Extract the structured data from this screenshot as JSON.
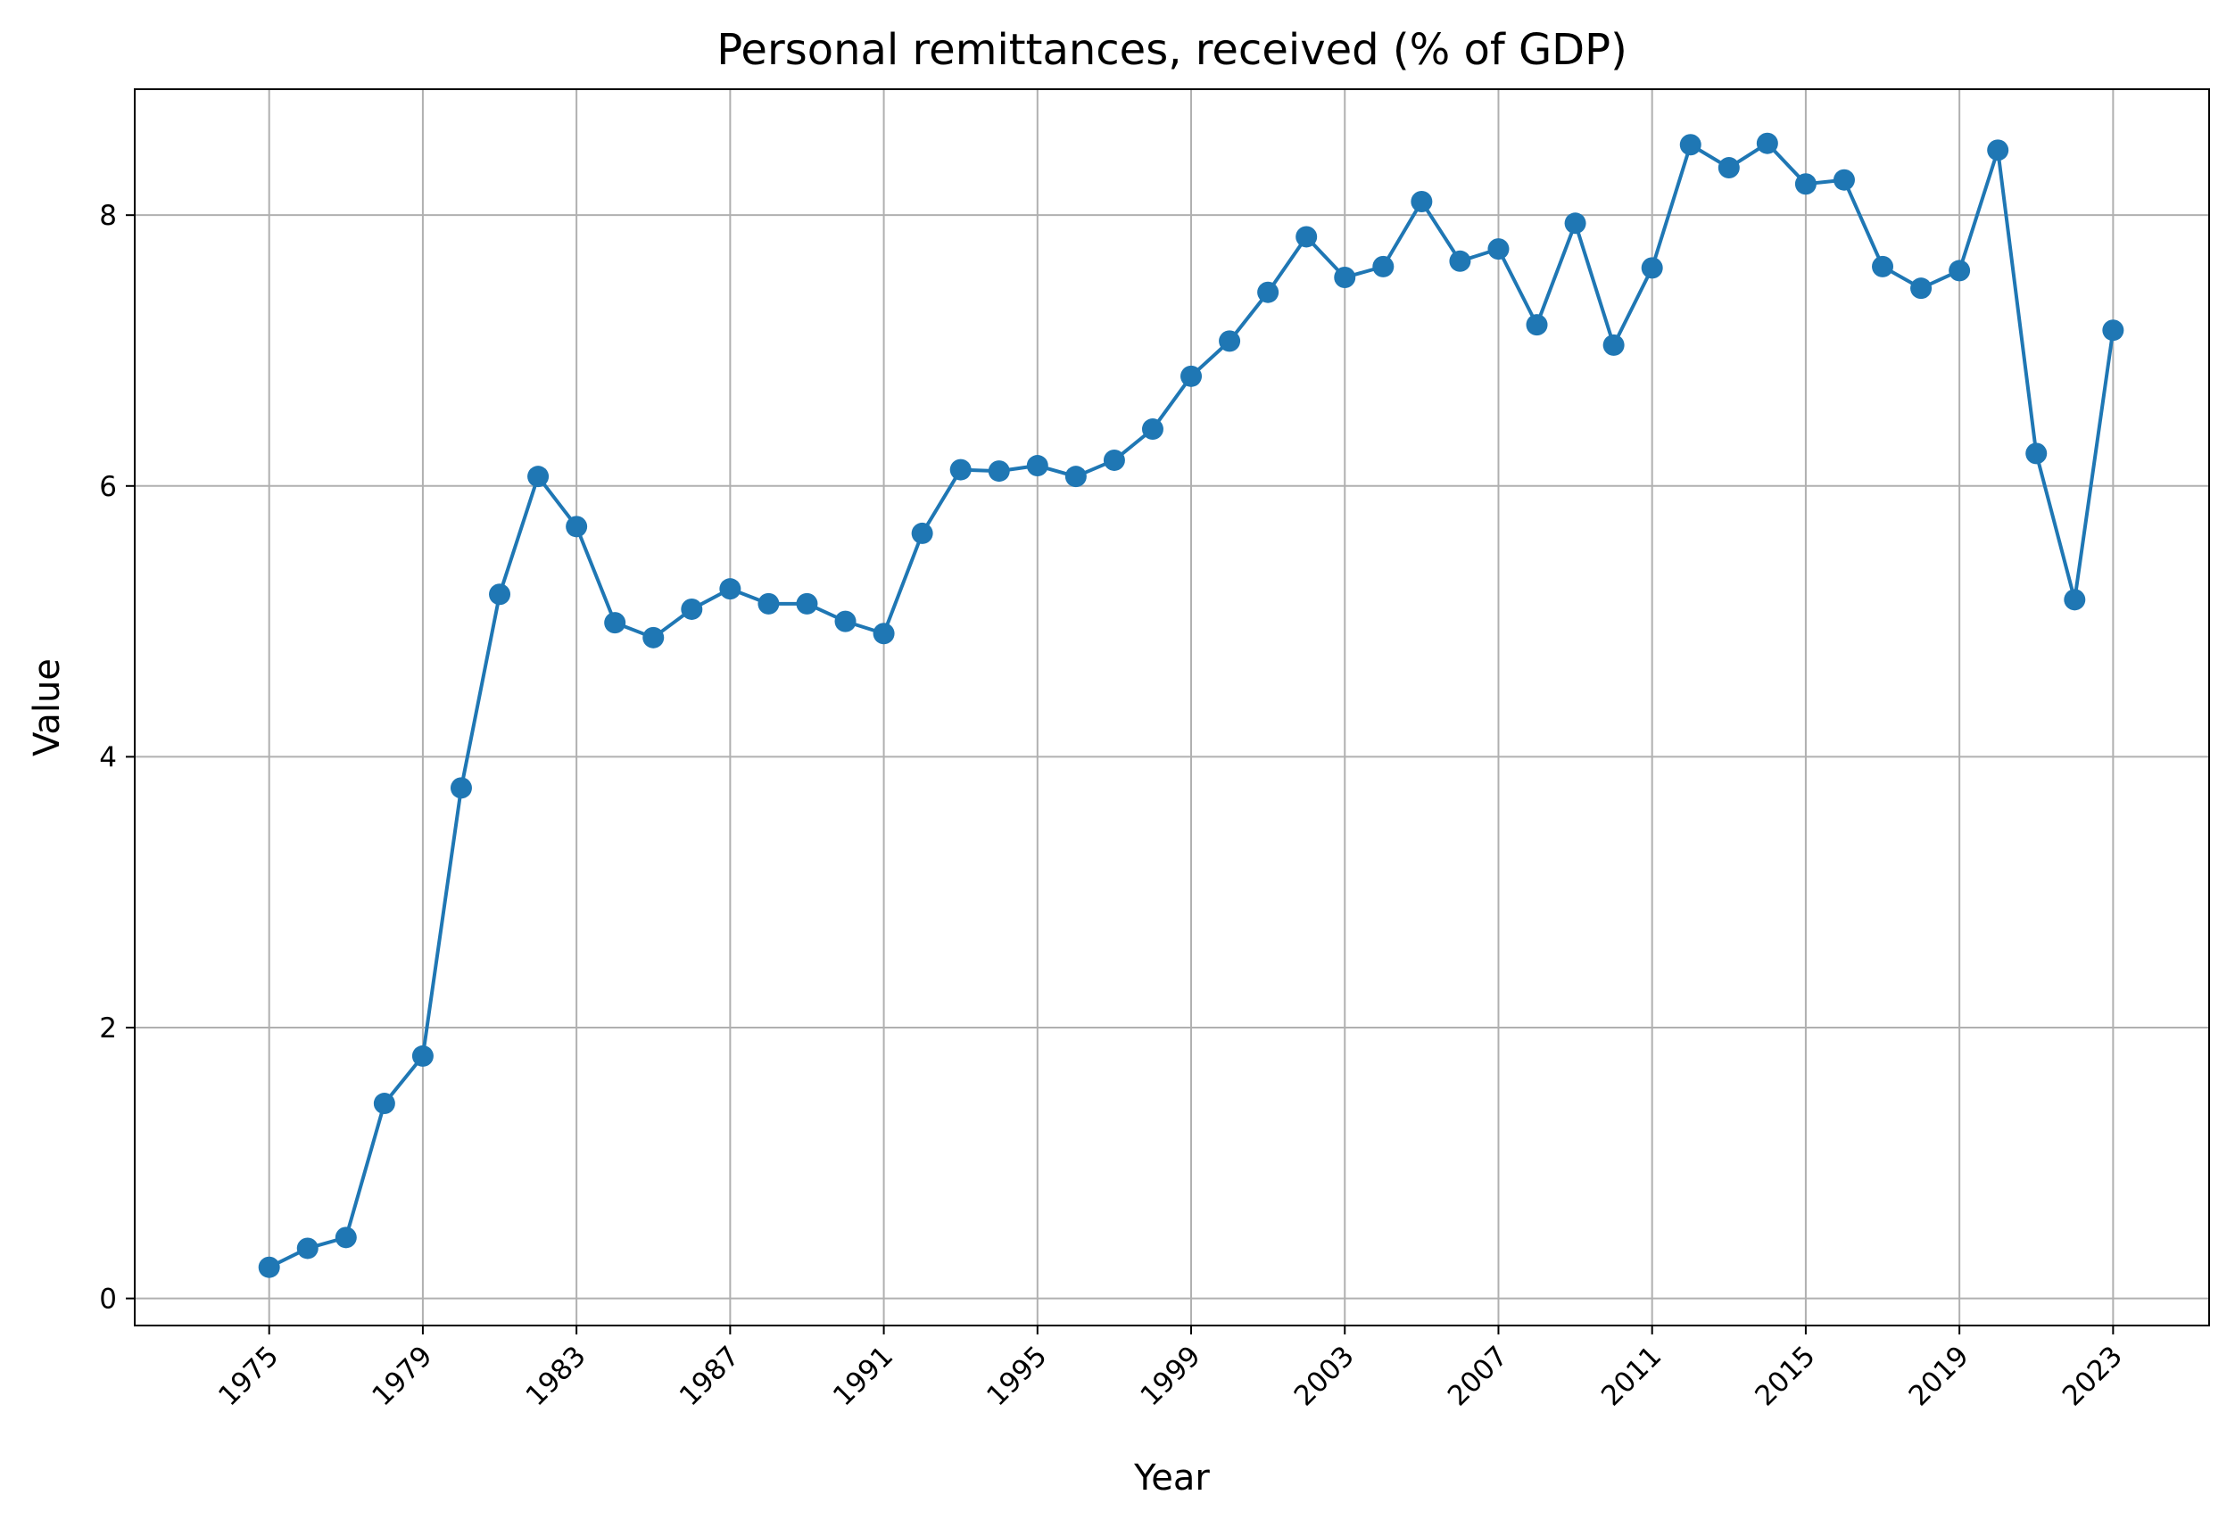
{
  "chart_data": {
    "type": "line",
    "title": "Personal remittances, received (% of GDP)",
    "xlabel": "Year",
    "ylabel": "Value",
    "xlim": [
      1971.5,
      2025.5
    ],
    "ylim": [
      -0.2,
      8.93
    ],
    "x_ticks": [
      1975,
      1979,
      1983,
      1987,
      1991,
      1995,
      1999,
      2003,
      2007,
      2011,
      2015,
      2019,
      2023
    ],
    "y_ticks": [
      0,
      2,
      4,
      6,
      8
    ],
    "grid": true,
    "legend": "none",
    "series": [
      {
        "color": "#1f77b4",
        "marker": "circle",
        "x": [
          1975,
          1976,
          1977,
          1978,
          1979,
          1980,
          1981,
          1982,
          1983,
          1984,
          1985,
          1986,
          1987,
          1988,
          1989,
          1990,
          1991,
          1992,
          1993,
          1994,
          1995,
          1996,
          1997,
          1998,
          1999,
          2000,
          2001,
          2002,
          2003,
          2004,
          2005,
          2006,
          2007,
          2008,
          2009,
          2010,
          2011,
          2012,
          2013,
          2014,
          2015,
          2016,
          2017,
          2018,
          2019,
          2020,
          2021,
          2022,
          2023
        ],
        "y": [
          0.23,
          0.37,
          0.45,
          1.44,
          1.79,
          3.77,
          5.2,
          6.07,
          5.7,
          4.99,
          4.88,
          5.09,
          5.24,
          5.13,
          5.13,
          5.0,
          4.91,
          5.65,
          6.12,
          6.11,
          6.15,
          6.07,
          6.19,
          6.42,
          6.81,
          7.07,
          7.43,
          7.84,
          7.54,
          7.62,
          8.1,
          7.66,
          7.75,
          7.19,
          7.94,
          7.04,
          7.61,
          8.52,
          8.35,
          8.53,
          8.23,
          8.26,
          7.62,
          7.46,
          7.59,
          8.48,
          6.24,
          5.16,
          7.15
        ]
      }
    ]
  }
}
